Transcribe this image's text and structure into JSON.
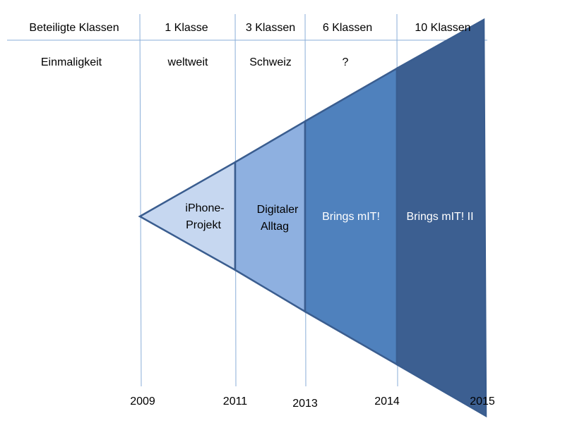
{
  "header_row": [
    "Beteiligte Klassen",
    "1 Klasse",
    "3 Klassen",
    "6 Klassen",
    "10 Klassen"
  ],
  "second_row": [
    "Einmaligkeit",
    "weltweit",
    "Schweiz",
    "?"
  ],
  "phases": [
    {
      "lines": [
        "iPhone-",
        "Projekt"
      ]
    },
    {
      "lines": [
        "Digitaler",
        "Alltag"
      ]
    },
    {
      "lines": [
        "Brings mIT!"
      ]
    },
    {
      "lines": [
        "Brings mIT! II"
      ]
    }
  ],
  "years": [
    "2009",
    "2011",
    "2013",
    "2014",
    "2015"
  ]
}
